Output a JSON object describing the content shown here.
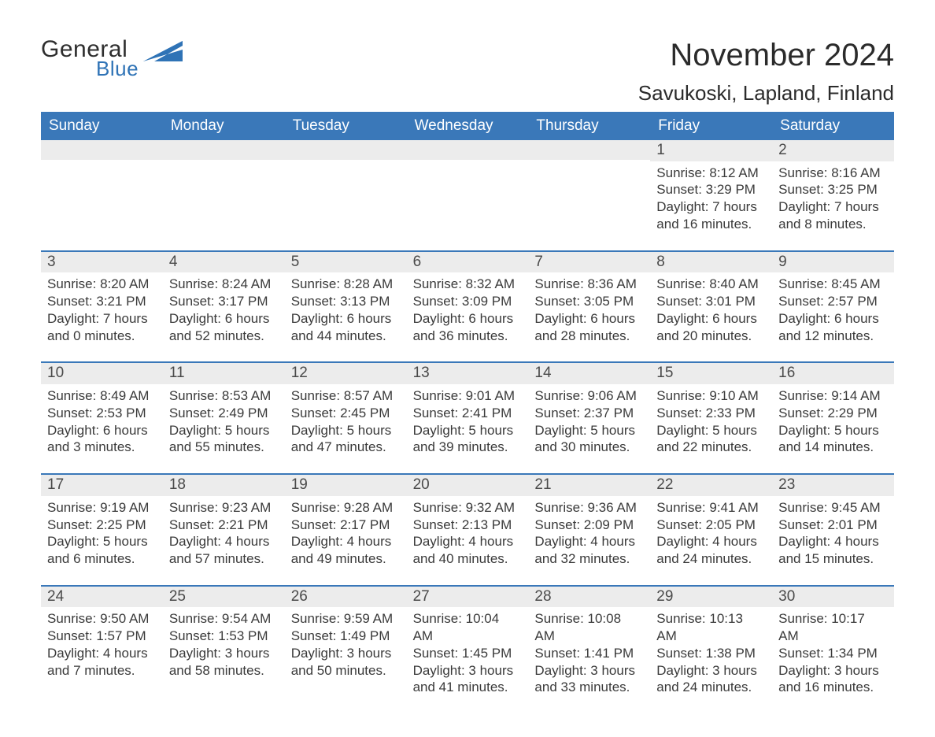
{
  "logo": {
    "general": "General",
    "blue": "Blue"
  },
  "title": "November 2024",
  "location": "Savukoski, Lapland, Finland",
  "colors": {
    "header_bg": "#3a78b9",
    "daynum_bg": "#ececec",
    "text": "#3a3a3a",
    "logo_blue": "#2f73b6"
  },
  "weekdays": [
    "Sunday",
    "Monday",
    "Tuesday",
    "Wednesday",
    "Thursday",
    "Friday",
    "Saturday"
  ],
  "weeks": [
    [
      null,
      null,
      null,
      null,
      null,
      {
        "n": "1",
        "sunrise": "Sunrise: 8:12 AM",
        "sunset": "Sunset: 3:29 PM",
        "dl1": "Daylight: 7 hours",
        "dl2": "and 16 minutes."
      },
      {
        "n": "2",
        "sunrise": "Sunrise: 8:16 AM",
        "sunset": "Sunset: 3:25 PM",
        "dl1": "Daylight: 7 hours",
        "dl2": "and 8 minutes."
      }
    ],
    [
      {
        "n": "3",
        "sunrise": "Sunrise: 8:20 AM",
        "sunset": "Sunset: 3:21 PM",
        "dl1": "Daylight: 7 hours",
        "dl2": "and 0 minutes."
      },
      {
        "n": "4",
        "sunrise": "Sunrise: 8:24 AM",
        "sunset": "Sunset: 3:17 PM",
        "dl1": "Daylight: 6 hours",
        "dl2": "and 52 minutes."
      },
      {
        "n": "5",
        "sunrise": "Sunrise: 8:28 AM",
        "sunset": "Sunset: 3:13 PM",
        "dl1": "Daylight: 6 hours",
        "dl2": "and 44 minutes."
      },
      {
        "n": "6",
        "sunrise": "Sunrise: 8:32 AM",
        "sunset": "Sunset: 3:09 PM",
        "dl1": "Daylight: 6 hours",
        "dl2": "and 36 minutes."
      },
      {
        "n": "7",
        "sunrise": "Sunrise: 8:36 AM",
        "sunset": "Sunset: 3:05 PM",
        "dl1": "Daylight: 6 hours",
        "dl2": "and 28 minutes."
      },
      {
        "n": "8",
        "sunrise": "Sunrise: 8:40 AM",
        "sunset": "Sunset: 3:01 PM",
        "dl1": "Daylight: 6 hours",
        "dl2": "and 20 minutes."
      },
      {
        "n": "9",
        "sunrise": "Sunrise: 8:45 AM",
        "sunset": "Sunset: 2:57 PM",
        "dl1": "Daylight: 6 hours",
        "dl2": "and 12 minutes."
      }
    ],
    [
      {
        "n": "10",
        "sunrise": "Sunrise: 8:49 AM",
        "sunset": "Sunset: 2:53 PM",
        "dl1": "Daylight: 6 hours",
        "dl2": "and 3 minutes."
      },
      {
        "n": "11",
        "sunrise": "Sunrise: 8:53 AM",
        "sunset": "Sunset: 2:49 PM",
        "dl1": "Daylight: 5 hours",
        "dl2": "and 55 minutes."
      },
      {
        "n": "12",
        "sunrise": "Sunrise: 8:57 AM",
        "sunset": "Sunset: 2:45 PM",
        "dl1": "Daylight: 5 hours",
        "dl2": "and 47 minutes."
      },
      {
        "n": "13",
        "sunrise": "Sunrise: 9:01 AM",
        "sunset": "Sunset: 2:41 PM",
        "dl1": "Daylight: 5 hours",
        "dl2": "and 39 minutes."
      },
      {
        "n": "14",
        "sunrise": "Sunrise: 9:06 AM",
        "sunset": "Sunset: 2:37 PM",
        "dl1": "Daylight: 5 hours",
        "dl2": "and 30 minutes."
      },
      {
        "n": "15",
        "sunrise": "Sunrise: 9:10 AM",
        "sunset": "Sunset: 2:33 PM",
        "dl1": "Daylight: 5 hours",
        "dl2": "and 22 minutes."
      },
      {
        "n": "16",
        "sunrise": "Sunrise: 9:14 AM",
        "sunset": "Sunset: 2:29 PM",
        "dl1": "Daylight: 5 hours",
        "dl2": "and 14 minutes."
      }
    ],
    [
      {
        "n": "17",
        "sunrise": "Sunrise: 9:19 AM",
        "sunset": "Sunset: 2:25 PM",
        "dl1": "Daylight: 5 hours",
        "dl2": "and 6 minutes."
      },
      {
        "n": "18",
        "sunrise": "Sunrise: 9:23 AM",
        "sunset": "Sunset: 2:21 PM",
        "dl1": "Daylight: 4 hours",
        "dl2": "and 57 minutes."
      },
      {
        "n": "19",
        "sunrise": "Sunrise: 9:28 AM",
        "sunset": "Sunset: 2:17 PM",
        "dl1": "Daylight: 4 hours",
        "dl2": "and 49 minutes."
      },
      {
        "n": "20",
        "sunrise": "Sunrise: 9:32 AM",
        "sunset": "Sunset: 2:13 PM",
        "dl1": "Daylight: 4 hours",
        "dl2": "and 40 minutes."
      },
      {
        "n": "21",
        "sunrise": "Sunrise: 9:36 AM",
        "sunset": "Sunset: 2:09 PM",
        "dl1": "Daylight: 4 hours",
        "dl2": "and 32 minutes."
      },
      {
        "n": "22",
        "sunrise": "Sunrise: 9:41 AM",
        "sunset": "Sunset: 2:05 PM",
        "dl1": "Daylight: 4 hours",
        "dl2": "and 24 minutes."
      },
      {
        "n": "23",
        "sunrise": "Sunrise: 9:45 AM",
        "sunset": "Sunset: 2:01 PM",
        "dl1": "Daylight: 4 hours",
        "dl2": "and 15 minutes."
      }
    ],
    [
      {
        "n": "24",
        "sunrise": "Sunrise: 9:50 AM",
        "sunset": "Sunset: 1:57 PM",
        "dl1": "Daylight: 4 hours",
        "dl2": "and 7 minutes."
      },
      {
        "n": "25",
        "sunrise": "Sunrise: 9:54 AM",
        "sunset": "Sunset: 1:53 PM",
        "dl1": "Daylight: 3 hours",
        "dl2": "and 58 minutes."
      },
      {
        "n": "26",
        "sunrise": "Sunrise: 9:59 AM",
        "sunset": "Sunset: 1:49 PM",
        "dl1": "Daylight: 3 hours",
        "dl2": "and 50 minutes."
      },
      {
        "n": "27",
        "sunrise": "Sunrise: 10:04 AM",
        "sunset": "Sunset: 1:45 PM",
        "dl1": "Daylight: 3 hours",
        "dl2": "and 41 minutes."
      },
      {
        "n": "28",
        "sunrise": "Sunrise: 10:08 AM",
        "sunset": "Sunset: 1:41 PM",
        "dl1": "Daylight: 3 hours",
        "dl2": "and 33 minutes."
      },
      {
        "n": "29",
        "sunrise": "Sunrise: 10:13 AM",
        "sunset": "Sunset: 1:38 PM",
        "dl1": "Daylight: 3 hours",
        "dl2": "and 24 minutes."
      },
      {
        "n": "30",
        "sunrise": "Sunrise: 10:17 AM",
        "sunset": "Sunset: 1:34 PM",
        "dl1": "Daylight: 3 hours",
        "dl2": "and 16 minutes."
      }
    ]
  ]
}
